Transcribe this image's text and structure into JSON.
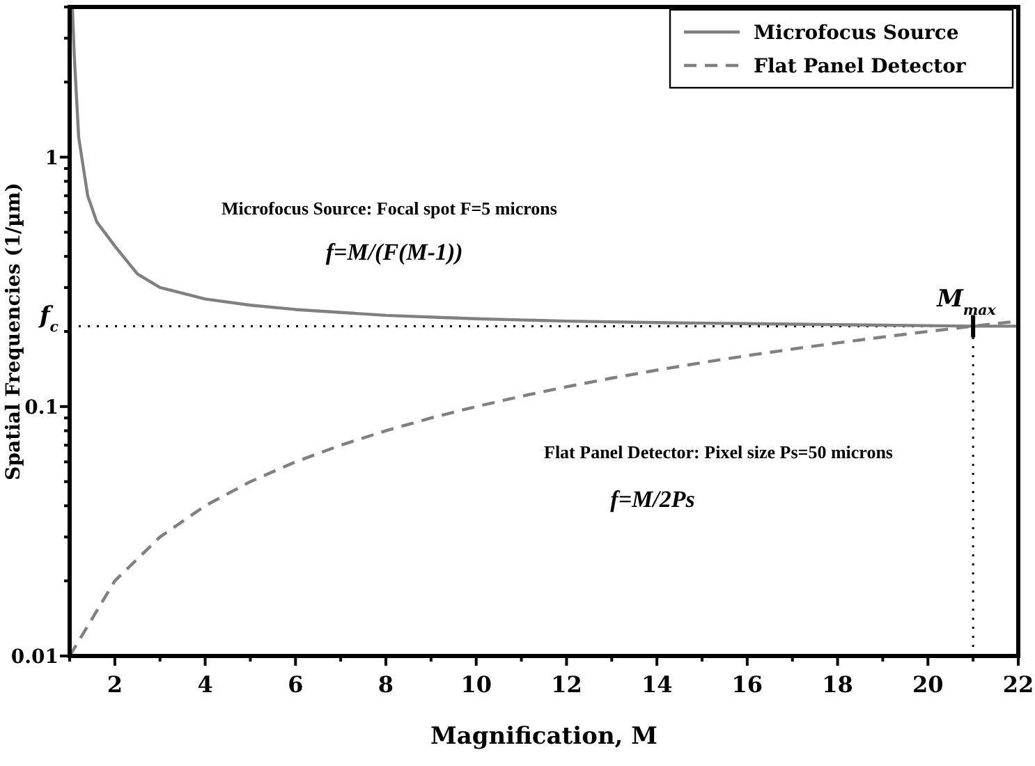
{
  "chart_data": {
    "type": "line",
    "xlabel": "Magnification, M",
    "ylabel": "Spatial Frequencies (1/µm)",
    "log": "y",
    "grid": false,
    "legend": "top right",
    "xlim": [
      1,
      22
    ],
    "ylim": [
      0.01,
      4
    ],
    "xticks": [
      {
        "value": 1,
        "label": null
      },
      2,
      {
        "value": 3,
        "label": null
      },
      4,
      {
        "value": 5,
        "label": null
      },
      6,
      {
        "value": 7,
        "label": null
      },
      8,
      {
        "value": 9,
        "label": null
      },
      10,
      {
        "value": 11,
        "label": null
      },
      12,
      {
        "value": 13,
        "label": null
      },
      14,
      {
        "value": 15,
        "label": null
      },
      16,
      {
        "value": 17,
        "label": null
      },
      18,
      {
        "value": 19,
        "label": null
      },
      20,
      {
        "value": 21,
        "label": null
      },
      22
    ],
    "yticks": [
      0.01,
      {
        "value": 0.02,
        "label": null
      },
      {
        "value": 0.03,
        "label": null
      },
      {
        "value": 0.04,
        "label": null
      },
      {
        "value": 0.05,
        "label": null
      },
      {
        "value": 0.06,
        "label": null
      },
      {
        "value": 0.07,
        "label": null
      },
      {
        "value": 0.08,
        "label": null
      },
      {
        "value": 0.09,
        "label": null
      },
      0.1,
      {
        "value": 0.2,
        "label": null
      },
      {
        "value": 0.3,
        "label": null
      },
      {
        "value": 0.4,
        "label": null
      },
      {
        "value": 0.5,
        "label": null
      },
      {
        "value": 0.6,
        "label": null
      },
      {
        "value": 0.7,
        "label": null
      },
      {
        "value": 0.8,
        "label": null
      },
      {
        "value": 0.9,
        "label": null
      },
      1,
      {
        "value": 2,
        "label": null
      },
      {
        "value": 3,
        "label": null
      },
      {
        "value": 4,
        "label": null
      }
    ],
    "series": [
      {
        "name": "Microfocus Source",
        "color": "#808080",
        "line_style": "solid",
        "x": [
          1.06,
          1.1,
          1.2,
          1.4,
          1.6,
          2,
          2.5,
          3,
          4,
          5,
          6,
          8,
          10,
          12,
          14,
          16,
          18,
          20,
          21,
          22
        ],
        "values": [
          4,
          2.6,
          1.2,
          0.7,
          0.55,
          0.44,
          0.34,
          0.3,
          0.27,
          0.255,
          0.245,
          0.232,
          0.225,
          0.22,
          0.217,
          0.215,
          0.213,
          0.211,
          0.21,
          0.21
        ]
      },
      {
        "name": "Flat Panel Detector",
        "color": "#808080",
        "line_style": "dashed",
        "x": [
          1,
          2,
          3,
          4,
          5,
          6,
          7,
          8,
          9,
          10,
          11,
          12,
          13,
          14,
          15,
          16,
          17,
          18,
          19,
          20,
          21,
          22
        ],
        "values": [
          0.01,
          0.02,
          0.03,
          0.04,
          0.05,
          0.06,
          0.07,
          0.08,
          0.09,
          0.1,
          0.11,
          0.12,
          0.13,
          0.14,
          0.15,
          0.16,
          0.17,
          0.18,
          0.19,
          0.2,
          0.21,
          0.22
        ]
      }
    ],
    "ref_lines": [
      {
        "axis": "y",
        "value": 0.21,
        "label": "f$_{c}$",
        "line_style": "dotted",
        "color": "#000000"
      },
      {
        "axis": "x",
        "value": 21,
        "label": "M$_{max}$",
        "line_style": "dotted",
        "color": "#000000"
      }
    ],
    "annotations": [
      "Microfocus Source: Focal spot F=5 microns",
      "f=M/(F(M-1))",
      "Flat Panel Detector: Pixel size Ps=50 microns",
      "f=M/2Ps"
    ]
  }
}
